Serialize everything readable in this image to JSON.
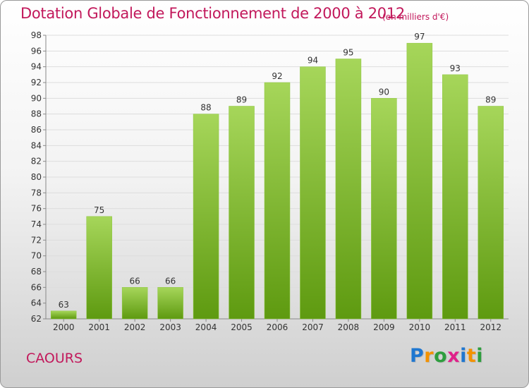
{
  "header": {
    "title": "Dotation Globale de Fonctionnement de 2000 à 2012",
    "unit": "(en milliers d'€)"
  },
  "footer": {
    "commune": "CAOURS",
    "logo_letters": [
      "P",
      "r",
      "o",
      "x",
      "i",
      "t",
      "i"
    ],
    "logo_colors": [
      "#1f77d0",
      "#f39200",
      "#2e9e3e",
      "#e0218a",
      "#1f77d0",
      "#f39200",
      "#2e9e3e"
    ]
  },
  "colors": {
    "bar_top": "#a6d65a",
    "bar_bottom": "#5e9a10",
    "title": "#c2185b",
    "grid": "#dddddd"
  },
  "chart_data": {
    "type": "bar",
    "title": "Dotation Globale de Fonctionnement de 2000 à 2012",
    "subtitle": "(en milliers d'€)",
    "xlabel": "",
    "ylabel": "",
    "categories": [
      "2000",
      "2001",
      "2002",
      "2003",
      "2004",
      "2005",
      "2006",
      "2007",
      "2008",
      "2009",
      "2010",
      "2011",
      "2012"
    ],
    "values": [
      63,
      75,
      66,
      66,
      88,
      89,
      92,
      94,
      95,
      90,
      97,
      93,
      89
    ],
    "ylim": [
      62,
      98
    ],
    "yticks": [
      62,
      64,
      66,
      68,
      70,
      72,
      74,
      76,
      78,
      80,
      82,
      84,
      86,
      88,
      90,
      92,
      94,
      96,
      98
    ],
    "grid": true,
    "legend": "none"
  }
}
